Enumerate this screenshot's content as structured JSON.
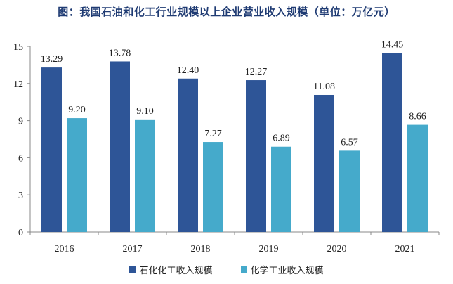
{
  "chart_data": {
    "type": "bar",
    "title": "图：我国石油和化工行业规模以上企业营业收入规模（单位：万亿元）",
    "categories": [
      "2016",
      "2017",
      "2018",
      "2019",
      "2020",
      "2021"
    ],
    "series": [
      {
        "name": "石化化工收入规模",
        "color": "#2e5597",
        "values": [
          13.29,
          13.78,
          12.4,
          12.27,
          11.08,
          14.45
        ],
        "labels": [
          "13.29",
          "13.78",
          "12.40",
          "12.27",
          "11.08",
          "14.45"
        ]
      },
      {
        "name": "化学工业收入规模",
        "color": "#45aacb",
        "values": [
          9.2,
          9.1,
          7.27,
          6.89,
          6.57,
          8.66
        ],
        "labels": [
          "9.20",
          "9.10",
          "7.27",
          "6.89",
          "6.57",
          "8.66"
        ]
      }
    ],
    "ylim": [
      0,
      15
    ],
    "yticks": [
      "0",
      "3",
      "6",
      "9",
      "12",
      "15"
    ],
    "grid": false,
    "legend_position": "bottom"
  }
}
